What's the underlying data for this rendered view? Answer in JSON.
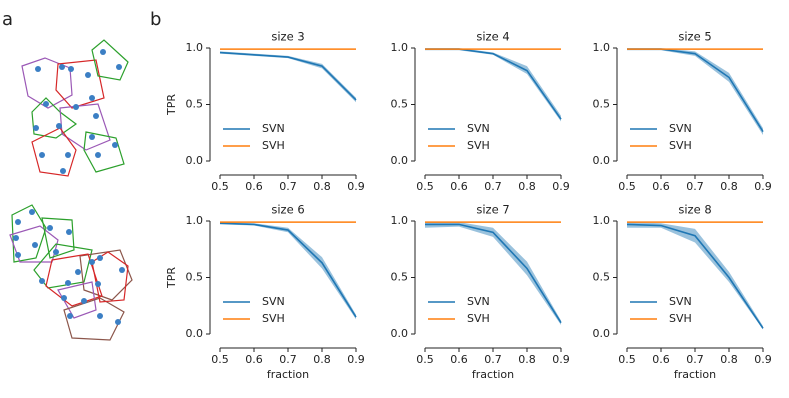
{
  "panel_labels": [
    "a",
    "b"
  ],
  "chart_data": [
    {
      "type": "line",
      "title": "size 3",
      "ylabel": "TPR",
      "x": [
        0.5,
        0.6,
        0.7,
        0.8,
        0.9
      ],
      "xlim": [
        0.5,
        0.9
      ],
      "xticks": [
        0.5,
        0.6,
        0.7,
        0.8,
        0.9
      ],
      "ylim": [
        0,
        1
      ],
      "yticks": [
        {
          "value": 0,
          "label": "0.0"
        },
        0.5,
        {
          "value": 1,
          "label": "1.0"
        }
      ],
      "legend": "lower left",
      "series": [
        {
          "name": "SVN",
          "color": "#1f77b4",
          "values": [
            0.96,
            0.94,
            0.92,
            0.84,
            0.54
          ],
          "lower": [
            0.95,
            0.93,
            0.91,
            0.82,
            0.52
          ],
          "upper": [
            0.97,
            0.95,
            0.93,
            0.86,
            0.56
          ]
        },
        {
          "name": "SVH",
          "color": "#ff7f0e",
          "values": [
            0.99,
            0.99,
            0.99,
            0.99,
            0.99
          ]
        }
      ]
    },
    {
      "type": "line",
      "title": "size 4",
      "x": [
        0.5,
        0.6,
        0.7,
        0.8,
        0.9
      ],
      "xlim": [
        0.5,
        0.9
      ],
      "xticks": [
        0.5,
        0.6,
        0.7,
        0.8,
        0.9
      ],
      "ylim": [
        0,
        1
      ],
      "yticks": [
        {
          "value": 0,
          "label": "0.0"
        },
        0.5,
        {
          "value": 1,
          "label": "1.0"
        }
      ],
      "legend": "lower left",
      "series": [
        {
          "name": "SVN",
          "color": "#1f77b4",
          "values": [
            0.99,
            0.99,
            0.95,
            0.8,
            0.37
          ],
          "lower": [
            0.98,
            0.98,
            0.94,
            0.77,
            0.35
          ],
          "upper": [
            1.0,
            1.0,
            0.96,
            0.84,
            0.4
          ]
        },
        {
          "name": "SVH",
          "color": "#ff7f0e",
          "values": [
            0.99,
            0.99,
            0.99,
            0.99,
            0.99
          ]
        }
      ]
    },
    {
      "type": "line",
      "title": "size 5",
      "x": [
        0.5,
        0.6,
        0.7,
        0.8,
        0.9
      ],
      "xlim": [
        0.5,
        0.9
      ],
      "xticks": [
        0.5,
        0.6,
        0.7,
        0.8,
        0.9
      ],
      "ylim": [
        0,
        1
      ],
      "yticks": [
        {
          "value": 0,
          "label": "0.0"
        },
        0.5,
        {
          "value": 1,
          "label": "1.0"
        }
      ],
      "legend": "lower left",
      "series": [
        {
          "name": "SVN",
          "color": "#1f77b4",
          "values": [
            0.99,
            0.99,
            0.95,
            0.74,
            0.26
          ],
          "lower": [
            0.98,
            0.98,
            0.93,
            0.7,
            0.23
          ],
          "upper": [
            1.0,
            1.0,
            0.97,
            0.78,
            0.29
          ]
        },
        {
          "name": "SVH",
          "color": "#ff7f0e",
          "values": [
            0.99,
            0.99,
            0.99,
            0.99,
            0.99
          ]
        }
      ]
    },
    {
      "type": "line",
      "title": "size 6",
      "ylabel": "TPR",
      "xlabel": "fraction",
      "x": [
        0.5,
        0.6,
        0.7,
        0.8,
        0.9
      ],
      "xlim": [
        0.5,
        0.9
      ],
      "xticks": [
        0.5,
        0.6,
        0.7,
        0.8,
        0.9
      ],
      "ylim": [
        0,
        1
      ],
      "yticks": [
        {
          "value": 0,
          "label": "0.0"
        },
        0.5,
        {
          "value": 1,
          "label": "1.0"
        }
      ],
      "legend": "lower left",
      "series": [
        {
          "name": "SVN",
          "color": "#1f77b4",
          "values": [
            0.98,
            0.97,
            0.92,
            0.63,
            0.15
          ],
          "lower": [
            0.97,
            0.96,
            0.9,
            0.58,
            0.13
          ],
          "upper": [
            0.99,
            0.98,
            0.94,
            0.68,
            0.17
          ]
        },
        {
          "name": "SVH",
          "color": "#ff7f0e",
          "values": [
            0.99,
            0.99,
            0.99,
            0.99,
            0.99
          ]
        }
      ]
    },
    {
      "type": "line",
      "title": "size 7",
      "xlabel": "fraction",
      "x": [
        0.5,
        0.6,
        0.7,
        0.8,
        0.9
      ],
      "xlim": [
        0.5,
        0.9
      ],
      "xticks": [
        0.5,
        0.6,
        0.7,
        0.8,
        0.9
      ],
      "ylim": [
        0,
        1
      ],
      "yticks": [
        {
          "value": 0,
          "label": "0.0"
        },
        0.5,
        {
          "value": 1,
          "label": "1.0"
        }
      ],
      "legend": "lower left",
      "series": [
        {
          "name": "SVN",
          "color": "#1f77b4",
          "values": [
            0.97,
            0.97,
            0.9,
            0.58,
            0.1
          ],
          "lower": [
            0.94,
            0.95,
            0.86,
            0.52,
            0.08
          ],
          "upper": [
            0.99,
            0.99,
            0.94,
            0.64,
            0.12
          ]
        },
        {
          "name": "SVH",
          "color": "#ff7f0e",
          "values": [
            0.99,
            0.99,
            0.99,
            0.99,
            0.99
          ]
        }
      ]
    },
    {
      "type": "line",
      "title": "size 8",
      "xlabel": "fraction",
      "x": [
        0.5,
        0.6,
        0.7,
        0.8,
        0.9
      ],
      "xlim": [
        0.5,
        0.9
      ],
      "xticks": [
        0.5,
        0.6,
        0.7,
        0.8,
        0.9
      ],
      "ylim": [
        0,
        1
      ],
      "yticks": [
        {
          "value": 0,
          "label": "0.0"
        },
        0.5,
        {
          "value": 1,
          "label": "1.0"
        }
      ],
      "legend": "lower left",
      "series": [
        {
          "name": "SVN",
          "color": "#1f77b4",
          "values": [
            0.97,
            0.96,
            0.87,
            0.5,
            0.05
          ],
          "lower": [
            0.94,
            0.94,
            0.81,
            0.46,
            0.04
          ],
          "upper": [
            0.99,
            0.98,
            0.93,
            0.55,
            0.07
          ]
        },
        {
          "name": "SVH",
          "color": "#ff7f0e",
          "values": [
            0.99,
            0.99,
            0.99,
            0.99,
            0.99
          ]
        }
      ]
    }
  ]
}
